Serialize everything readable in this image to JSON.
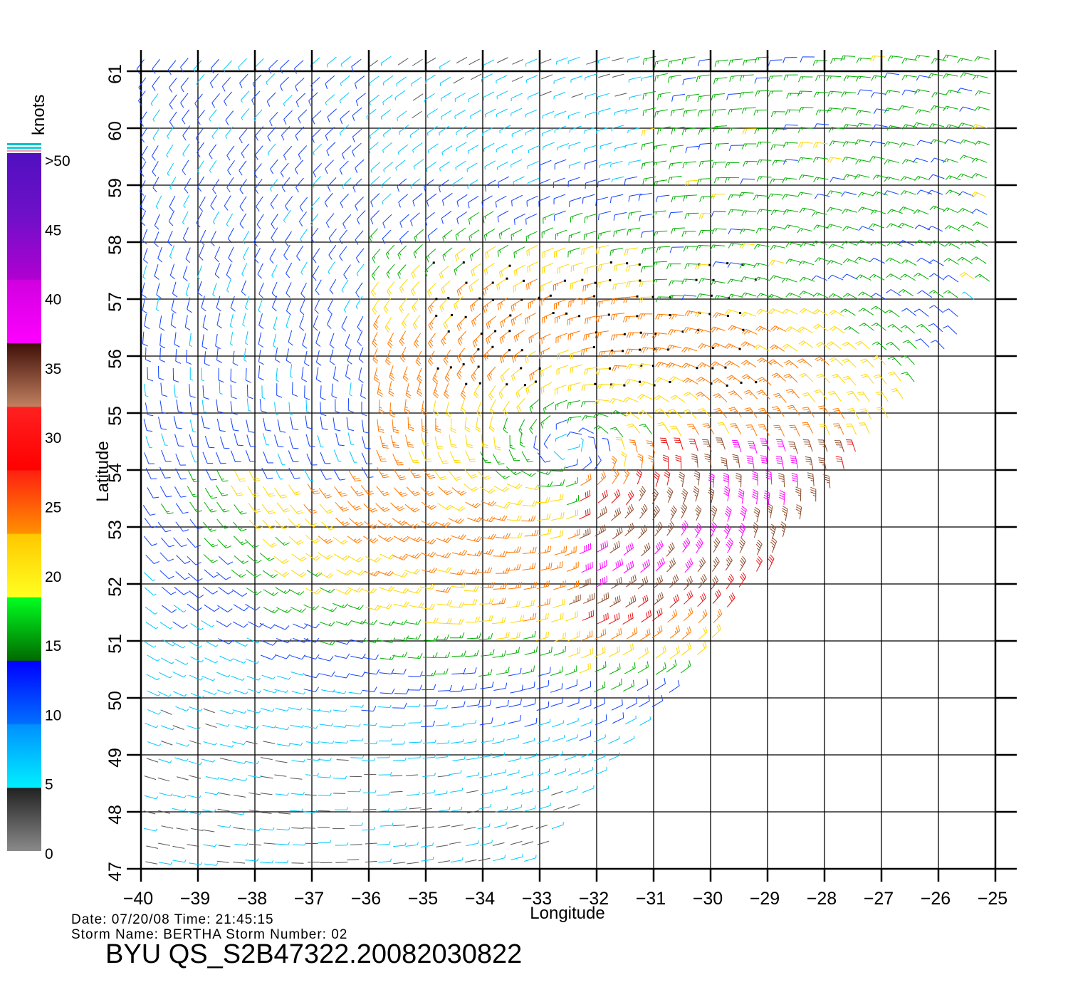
{
  "map": {
    "lon_min": -40,
    "lon_max": -25,
    "lat_min": 47,
    "lat_max": 61,
    "lon_ticks": [
      "-40",
      "-39",
      "-38",
      "-37",
      "-36",
      "-35",
      "-34",
      "-33",
      "-32",
      "-31",
      "-30",
      "-29",
      "-28",
      "-27",
      "-26",
      "-25"
    ],
    "lat_ticks": [
      "47",
      "48",
      "49",
      "50",
      "51",
      "52",
      "53",
      "54",
      "55",
      "56",
      "57",
      "58",
      "59",
      "60",
      "61"
    ],
    "xlabel": "Longitude",
    "ylabel": "Latitude",
    "storm_center": {
      "lon": -32.5,
      "lat": 54.4
    },
    "swath_edge": [
      [
        -33.2,
        47
      ],
      [
        -25,
        57.2
      ]
    ],
    "rain_flag_region": {
      "lon": [
        -35,
        -29
      ],
      "lat": [
        55.3,
        57.7
      ]
    }
  },
  "colorbar": {
    "units": "knots",
    "labels": [
      ">50",
      "45",
      "40",
      "35",
      "30",
      "25",
      "20",
      "15",
      "10",
      "5",
      "0"
    ],
    "colors": {
      "0-5": "#555555",
      "5-10": "#00c8ff",
      "10-15": "#1040ff",
      "15-20": "#00b000",
      "20-25": "#ffd800",
      "25-30": "#ff7800",
      "30-35": "#e81010",
      "35-40": "#8b4a2a",
      "40-45": "#ff00ff",
      "45-50": "#a000d0",
      ">50": "#6010c0"
    }
  },
  "footer": {
    "line1": "Date: 07/20/08   Time: 21:45:15",
    "line2": "Storm  Name:  BERTHA    Storm  Number:  02",
    "title": "BYU  QS_S2B47322.20082030822"
  }
}
